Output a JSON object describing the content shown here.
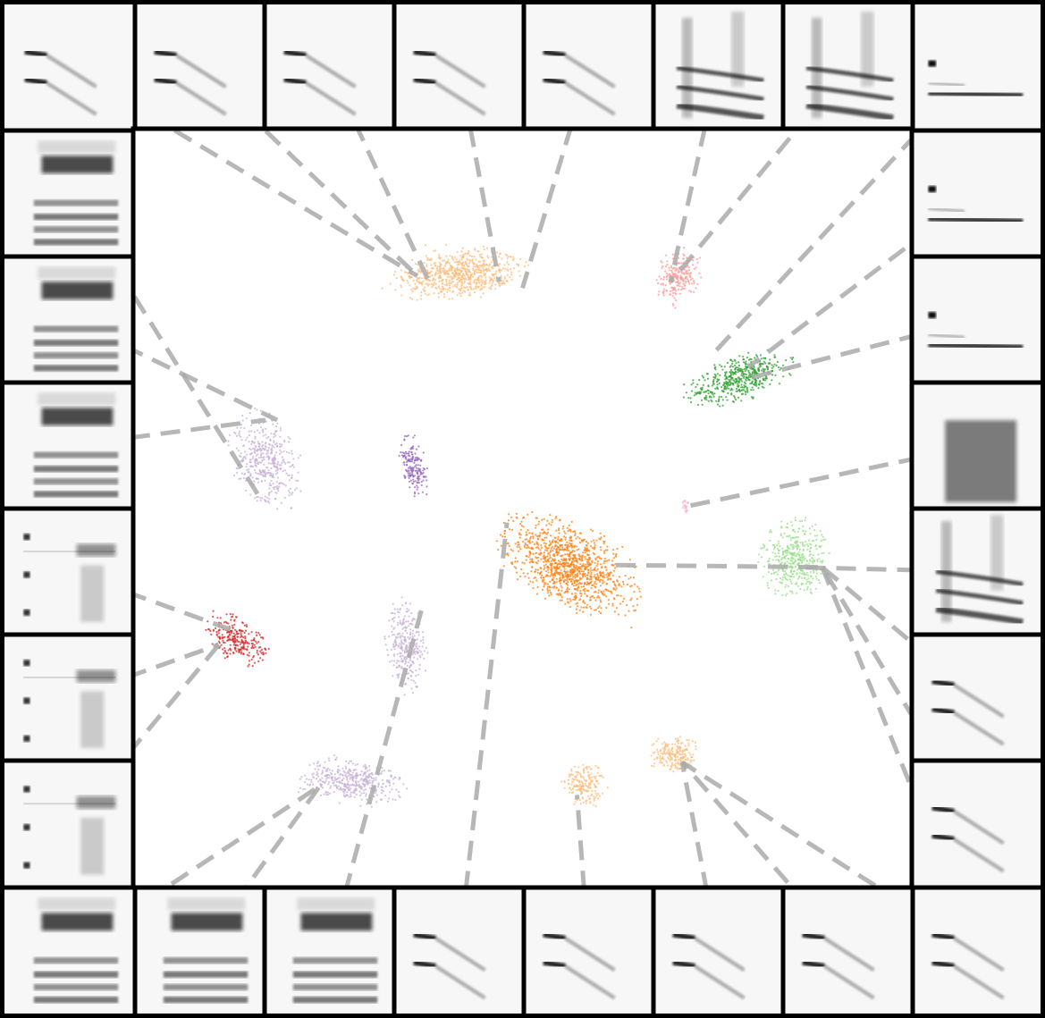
{
  "chart_data": {
    "type": "scatter",
    "title": "",
    "xlabel": "",
    "ylabel": "",
    "grid": false,
    "legend": "none",
    "axes_visible": false,
    "xlim": [
      0,
      1
    ],
    "ylim": [
      0,
      1
    ],
    "connector_color": "#aaaaaa",
    "frame_color": "#000000",
    "clusters": [
      {
        "id": "c-peach-top",
        "color": "#ffbb78",
        "cx": 0.42,
        "cy": 0.809,
        "rx": 0.08,
        "ry": 0.033,
        "rotate": 8,
        "n": 700
      },
      {
        "id": "c-pink-top",
        "color": "#ff9896",
        "cx": 0.7,
        "cy": 0.806,
        "rx": 0.027,
        "ry": 0.037,
        "rotate": -25,
        "n": 220
      },
      {
        "id": "c-green-dark",
        "color": "#2ca02c",
        "cx": 0.78,
        "cy": 0.671,
        "rx": 0.07,
        "ry": 0.027,
        "rotate": 20,
        "n": 480
      },
      {
        "id": "c-lilac-left",
        "color": "#c5b0d5",
        "cx": 0.17,
        "cy": 0.561,
        "rx": 0.04,
        "ry": 0.064,
        "rotate": 20,
        "n": 420
      },
      {
        "id": "c-purple-small",
        "color": "#9467bd",
        "cx": 0.36,
        "cy": 0.555,
        "rx": 0.015,
        "ry": 0.045,
        "rotate": 10,
        "n": 180
      },
      {
        "id": "c-pink-dot",
        "color": "#f7b6d2",
        "cx": 0.71,
        "cy": 0.502,
        "rx": 0.005,
        "ry": 0.01,
        "rotate": 0,
        "n": 25
      },
      {
        "id": "c-orange-main",
        "color": "#ff7f0e",
        "cx": 0.56,
        "cy": 0.425,
        "rx": 0.095,
        "ry": 0.05,
        "rotate": -28,
        "n": 1100
      },
      {
        "id": "c-green-light",
        "color": "#98df8a",
        "cx": 0.85,
        "cy": 0.432,
        "rx": 0.042,
        "ry": 0.05,
        "rotate": 0,
        "n": 420
      },
      {
        "id": "c-red",
        "color": "#d62728",
        "cx": 0.135,
        "cy": 0.326,
        "rx": 0.042,
        "ry": 0.027,
        "rotate": -35,
        "n": 260
      },
      {
        "id": "c-lilac-mid",
        "color": "#c5b0d5",
        "cx": 0.35,
        "cy": 0.32,
        "rx": 0.025,
        "ry": 0.06,
        "rotate": 5,
        "n": 300
      },
      {
        "id": "c-peach-bot-right",
        "color": "#ffbb78",
        "cx": 0.695,
        "cy": 0.175,
        "rx": 0.032,
        "ry": 0.023,
        "rotate": 0,
        "n": 200
      },
      {
        "id": "c-peach-bot-mid",
        "color": "#ffbb78",
        "cx": 0.58,
        "cy": 0.134,
        "rx": 0.028,
        "ry": 0.028,
        "rotate": 0,
        "n": 180
      },
      {
        "id": "c-lilac-bottom",
        "color": "#c5b0d5",
        "cx": 0.28,
        "cy": 0.14,
        "rx": 0.065,
        "ry": 0.03,
        "rotate": -5,
        "n": 420
      }
    ],
    "tiles": [
      {
        "id": "top-1",
        "pattern": "descending-lines",
        "target": [
          0.365,
          0.806
        ]
      },
      {
        "id": "top-2",
        "pattern": "descending-lines",
        "target": [
          0.365,
          0.806
        ]
      },
      {
        "id": "top-3",
        "pattern": "descending-lines",
        "target": [
          0.38,
          0.798
        ]
      },
      {
        "id": "top-4",
        "pattern": "descending-lines",
        "target": [
          0.47,
          0.798
        ]
      },
      {
        "id": "top-5",
        "pattern": "descending-lines",
        "target": [
          0.5,
          0.79
        ]
      },
      {
        "id": "top-6",
        "pattern": "stacked-harmonics",
        "target": [
          0.69,
          0.798
        ]
      },
      {
        "id": "top-7",
        "pattern": "stacked-harmonics",
        "target": [
          0.69,
          0.798
        ]
      },
      {
        "id": "top-8",
        "pattern": "flat-two-lines",
        "target": [
          0.74,
          0.698
        ]
      },
      {
        "id": "right-1",
        "pattern": "flat-two-lines",
        "target": [
          0.79,
          0.686
        ]
      },
      {
        "id": "right-2",
        "pattern": "flat-two-lines",
        "target": [
          0.79,
          0.671
        ]
      },
      {
        "id": "right-3",
        "pattern": "dense-block",
        "target": [
          0.71,
          0.502
        ]
      },
      {
        "id": "right-4",
        "pattern": "stacked-harmonics",
        "target": [
          0.85,
          0.422
        ]
      },
      {
        "id": "right-5",
        "pattern": "descending-lines",
        "target": [
          0.885,
          0.422
        ]
      },
      {
        "id": "right-6",
        "pattern": "descending-lines",
        "target": [
          0.885,
          0.422
        ]
      },
      {
        "id": "right-7",
        "pattern": "descending-lines",
        "target": [
          0.885,
          0.422
        ]
      },
      {
        "id": "left-1",
        "pattern": "broadband-bands",
        "target": [
          0.165,
          0.51
        ]
      },
      {
        "id": "left-2",
        "pattern": "broadband-bands",
        "target": [
          0.185,
          0.616
        ]
      },
      {
        "id": "left-3",
        "pattern": "broadband-bands",
        "target": [
          0.17,
          0.616
        ]
      },
      {
        "id": "left-4",
        "pattern": "dotted-column",
        "target": [
          0.125,
          0.34
        ]
      },
      {
        "id": "left-5",
        "pattern": "dotted-column",
        "target": [
          0.11,
          0.32
        ]
      },
      {
        "id": "left-6",
        "pattern": "dotted-column",
        "target": [
          0.11,
          0.32
        ]
      },
      {
        "id": "bottom-1",
        "pattern": "broadband-bands",
        "target": [
          0.24,
          0.134
        ]
      },
      {
        "id": "bottom-2",
        "pattern": "broadband-bands",
        "target": [
          0.24,
          0.134
        ]
      },
      {
        "id": "bottom-3",
        "pattern": "broadband-bands",
        "target": [
          0.37,
          0.365
        ]
      },
      {
        "id": "bottom-4",
        "pattern": "descending-lines",
        "target": [
          0.48,
          0.481
        ]
      },
      {
        "id": "bottom-5",
        "pattern": "descending-lines",
        "target": [
          0.57,
          0.122
        ]
      },
      {
        "id": "bottom-6",
        "pattern": "descending-lines",
        "target": [
          0.705,
          0.165
        ]
      },
      {
        "id": "bottom-7",
        "pattern": "descending-lines",
        "target": [
          0.705,
          0.165
        ]
      },
      {
        "id": "bottom-8",
        "pattern": "descending-lines",
        "target": [
          0.705,
          0.165
        ]
      }
    ],
    "extra_connectors": [
      {
        "from": "orange-main-center",
        "to": [
          0.885,
          0.422
        ],
        "from_xy": [
          0.62,
          0.425
        ]
      }
    ]
  }
}
